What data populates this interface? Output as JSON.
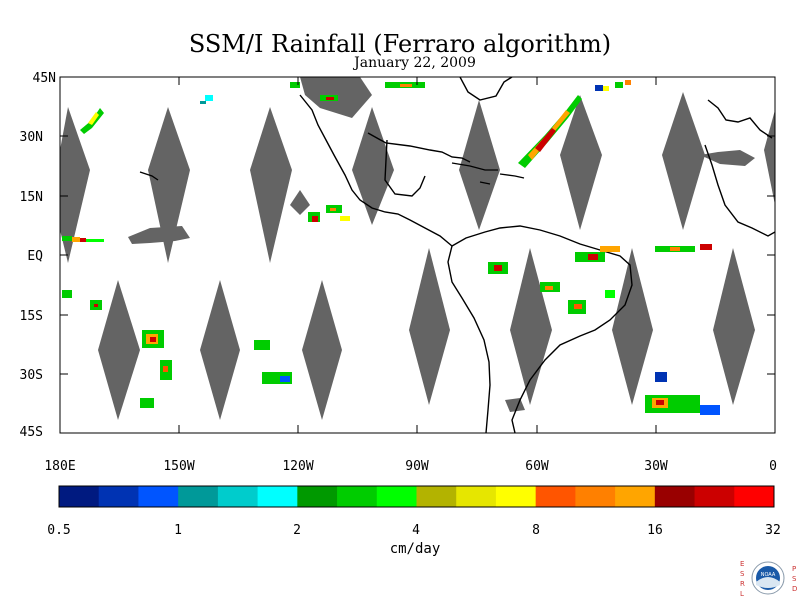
{
  "header": {
    "title": "SSM/I Rainfall (Ferraro algorithm)",
    "subtitle": "January 22, 2009"
  },
  "map": {
    "lat_labels": [
      "45N",
      "30N",
      "15N",
      "EQ",
      "15S",
      "30S",
      "45S"
    ],
    "lon_labels": [
      "180E",
      "150W",
      "120W",
      "90W",
      "60W",
      "30W",
      "0"
    ],
    "lat_range": [
      -45,
      45
    ],
    "lon_range": [
      -180,
      0
    ],
    "land_color": "#ffffff",
    "no_data_color": "#646464",
    "coastline_color": "#000000"
  },
  "colorbar": {
    "tick_labels": [
      "0.5",
      "1",
      "2",
      "4",
      "8",
      "16",
      "32"
    ],
    "units": "cm/day",
    "colors": [
      "#001a80",
      "#0033b3",
      "#0055ff",
      "#009999",
      "#00cccc",
      "#00ffff",
      "#009900",
      "#00cc00",
      "#00ff00",
      "#b3b300",
      "#e6e600",
      "#ffff00",
      "#ff5500",
      "#ff8000",
      "#ffa500",
      "#990000",
      "#cc0000",
      "#ff0000"
    ]
  },
  "logo": {
    "left_letters": "ESRL",
    "right_letters": "PSD",
    "emblem_text": "NOAA"
  }
}
